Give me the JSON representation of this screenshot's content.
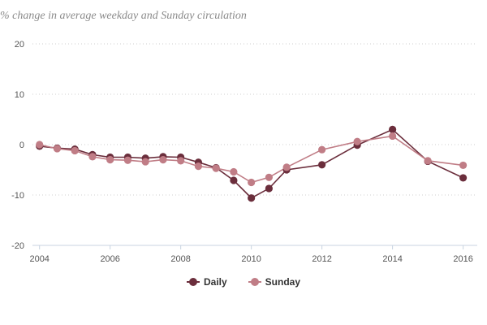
{
  "chart_data": {
    "type": "line",
    "title": "",
    "subtitle": "% change in average weekday and Sunday circulation",
    "xlabel": "",
    "ylabel": "",
    "xlim": [
      2003.8,
      2016.4
    ],
    "ylim": [
      -20,
      20
    ],
    "x_ticks": [
      2004,
      2006,
      2008,
      2010,
      2012,
      2014,
      2016
    ],
    "y_ticks": [
      -20,
      -10,
      0,
      10,
      20
    ],
    "grid": "horizontal dotted",
    "legend": "bottom",
    "series": [
      {
        "name": "Daily",
        "color": "#6b2e3c",
        "x": [
          2004.0,
          2004.5,
          2005.0,
          2005.5,
          2006.0,
          2006.5,
          2007.0,
          2007.5,
          2008.0,
          2008.5,
          2009.0,
          2009.5,
          2010.0,
          2010.5,
          2011.0,
          2012.0,
          2013.0,
          2014.0,
          2015.0,
          2016.0
        ],
        "y": [
          -0.3,
          -0.7,
          -0.9,
          -2.0,
          -2.5,
          -2.5,
          -2.7,
          -2.4,
          -2.5,
          -3.5,
          -4.6,
          -7.1,
          -10.6,
          -8.7,
          -5.0,
          -4.0,
          -0.1,
          3.0,
          -3.3,
          -6.6
        ]
      },
      {
        "name": "Sunday",
        "color": "#c07d86",
        "x": [
          2004.0,
          2004.5,
          2005.0,
          2005.5,
          2006.0,
          2006.5,
          2007.0,
          2007.5,
          2008.0,
          2008.5,
          2009.0,
          2009.5,
          2010.0,
          2010.5,
          2011.0,
          2012.0,
          2013.0,
          2014.0,
          2015.0,
          2016.0
        ],
        "y": [
          0.0,
          -0.8,
          -1.2,
          -2.4,
          -3.0,
          -3.1,
          -3.4,
          -3.0,
          -3.2,
          -4.3,
          -4.7,
          -5.4,
          -7.5,
          -6.5,
          -4.5,
          -1.0,
          0.6,
          1.7,
          -3.2,
          -4.1
        ]
      }
    ]
  }
}
